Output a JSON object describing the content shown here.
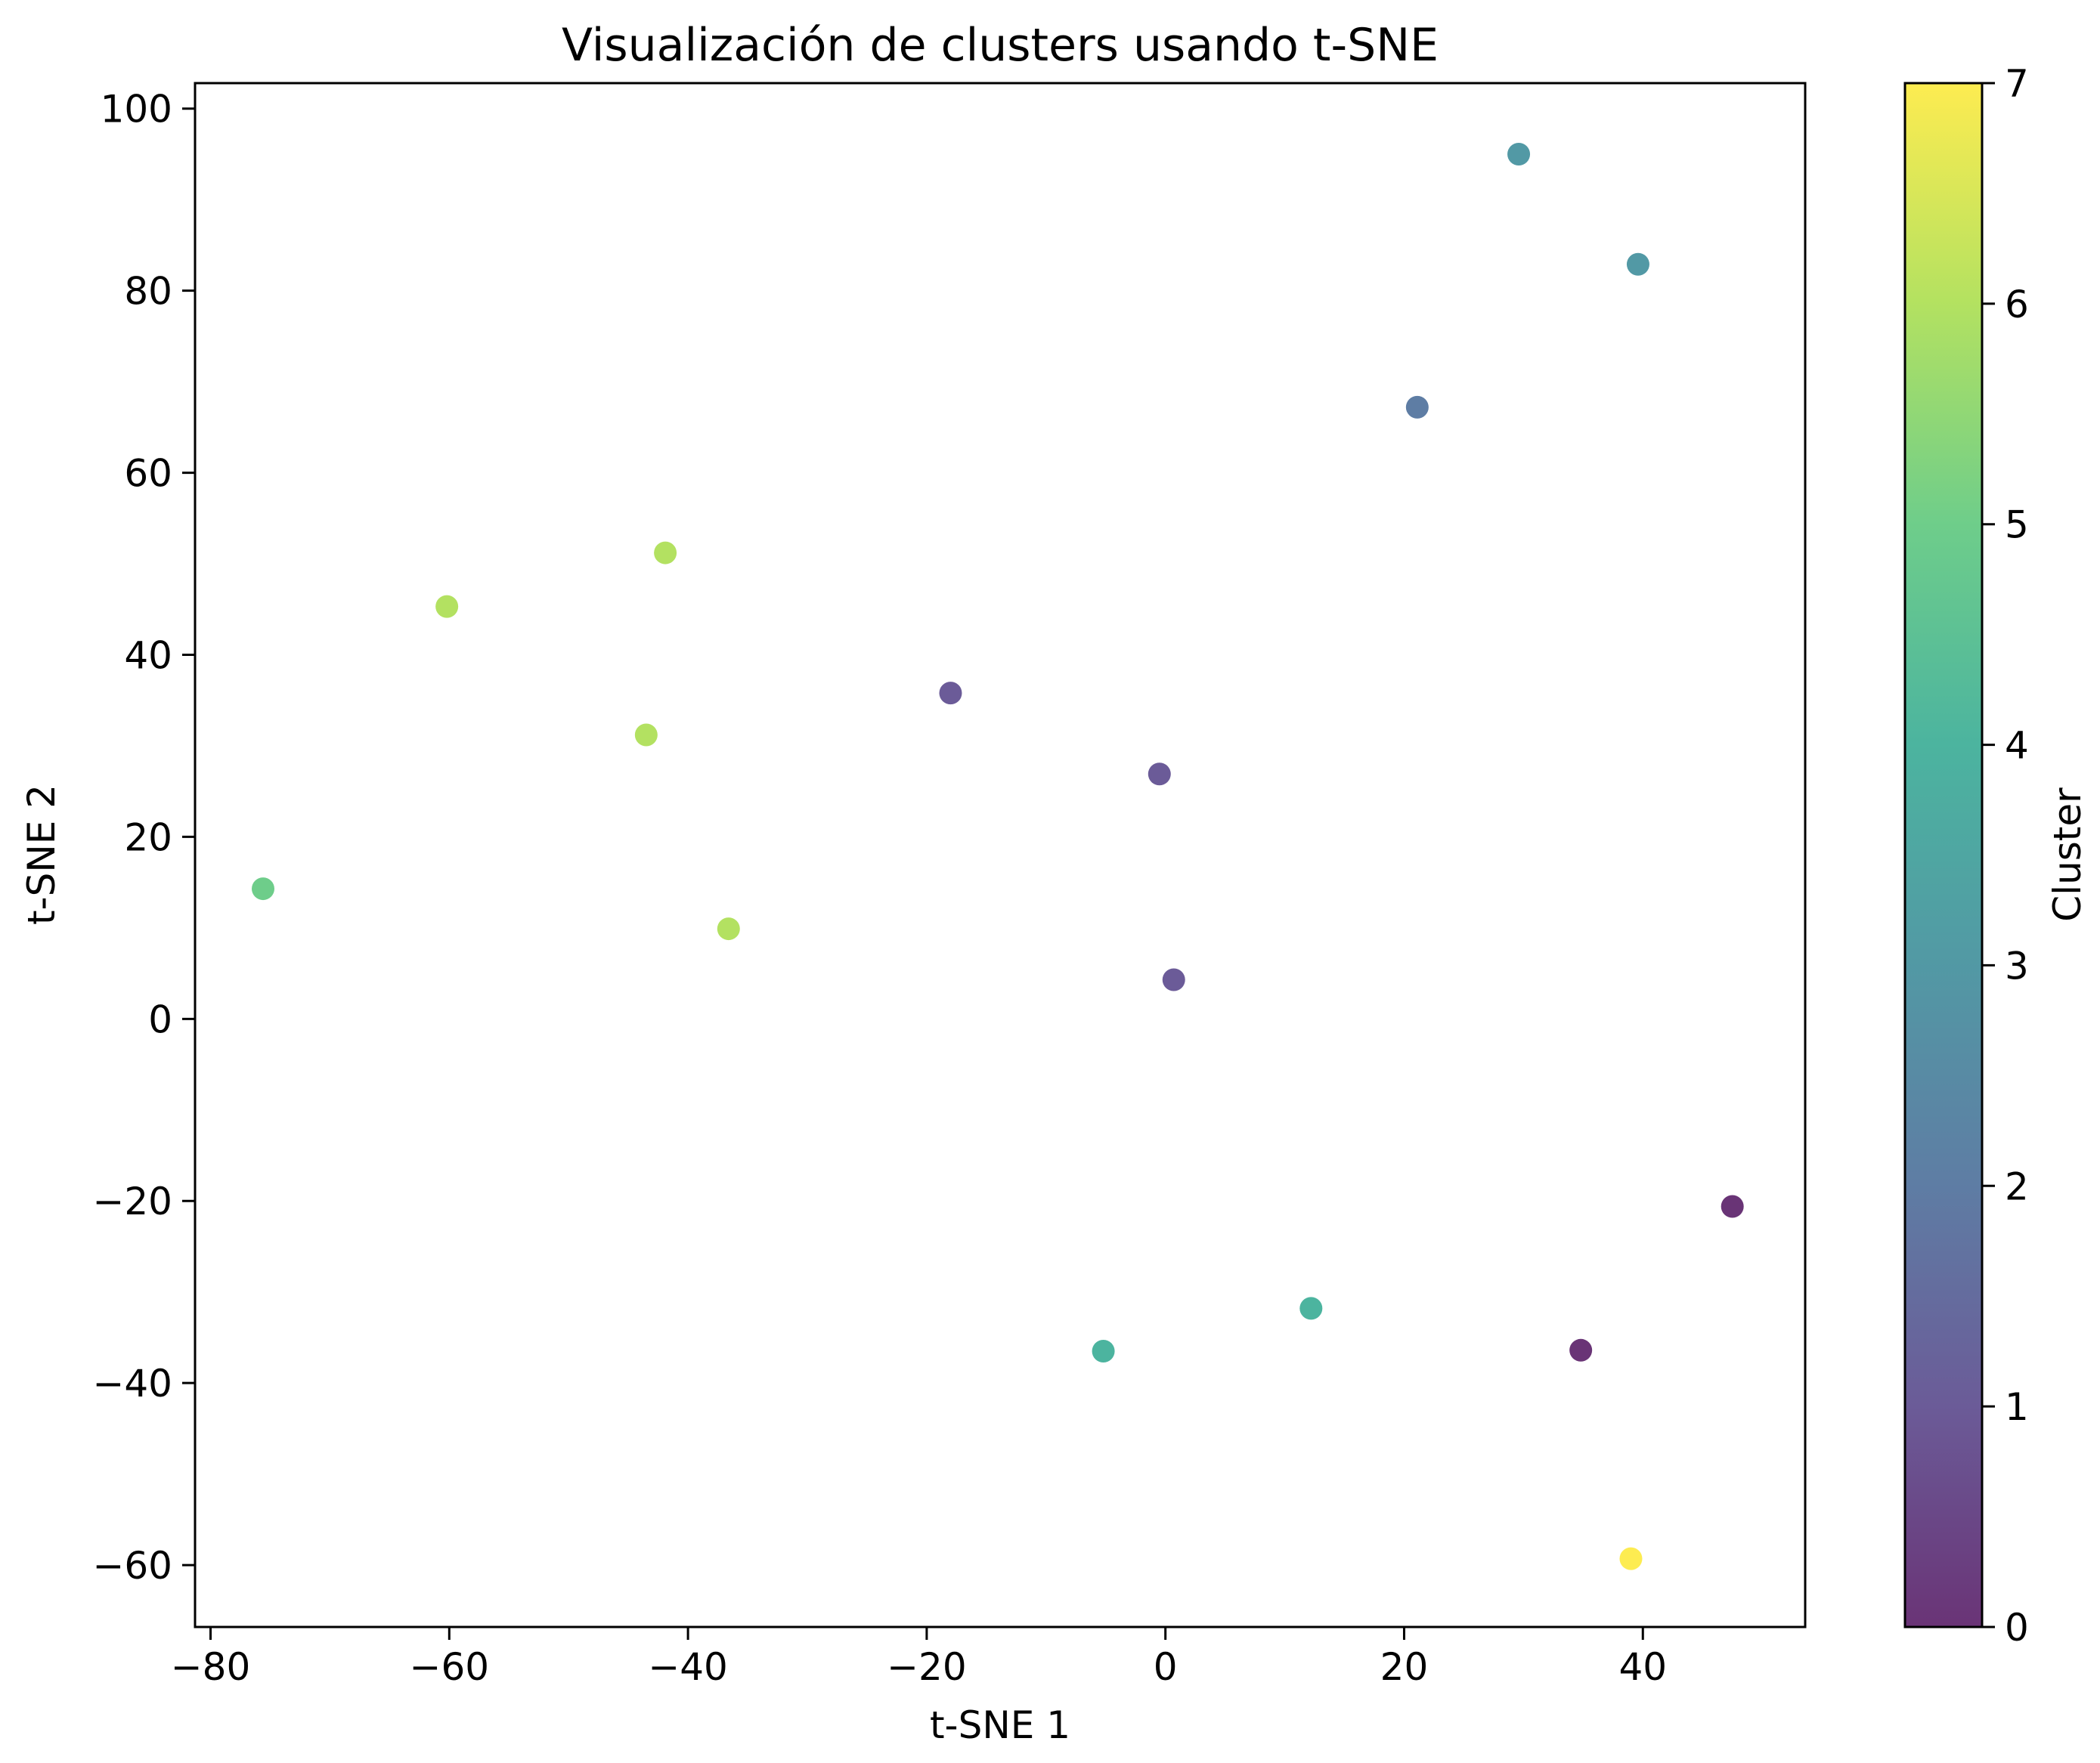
{
  "chart_data": {
    "type": "scatter",
    "title": "Visualización de clusters usando t-SNE",
    "xlabel": "t-SNE 1",
    "ylabel": "t-SNE 2",
    "xlim": [
      -81.3,
      53.6
    ],
    "ylim": [
      -66.8,
      102.8
    ],
    "xticks": [
      -80,
      -60,
      -40,
      -20,
      0,
      20,
      40
    ],
    "xtick_labels": [
      "−80",
      "−60",
      "−40",
      "−20",
      "0",
      "20",
      "40"
    ],
    "yticks": [
      -60,
      -40,
      -20,
      0,
      20,
      40,
      60,
      80,
      100
    ],
    "ytick_labels": [
      "−60",
      "−40",
      "−20",
      "0",
      "20",
      "40",
      "60",
      "80",
      "100"
    ],
    "grid": false,
    "colormap": "viridis",
    "colorbar": {
      "label": "Cluster",
      "range": [
        0,
        7
      ],
      "ticks": [
        0,
        1,
        2,
        3,
        4,
        5,
        6,
        7
      ],
      "tick_labels": [
        "0",
        "1",
        "2",
        "3",
        "4",
        "5",
        "6",
        "7"
      ],
      "stops": [
        "#440154",
        "#46327e",
        "#365c8d",
        "#277f8e",
        "#1fa187",
        "#4ac16d",
        "#a0da39",
        "#fde725"
      ]
    },
    "points": [
      {
        "x": 29.6,
        "y": 95.0,
        "cluster": 3
      },
      {
        "x": 39.6,
        "y": 82.9,
        "cluster": 3
      },
      {
        "x": 21.1,
        "y": 67.2,
        "cluster": 2
      },
      {
        "x": -41.9,
        "y": 51.2,
        "cluster": 6
      },
      {
        "x": -60.2,
        "y": 45.3,
        "cluster": 6
      },
      {
        "x": -18.0,
        "y": 35.8,
        "cluster": 1
      },
      {
        "x": -43.5,
        "y": 31.2,
        "cluster": 6
      },
      {
        "x": -0.5,
        "y": 26.9,
        "cluster": 1
      },
      {
        "x": -75.6,
        "y": 14.3,
        "cluster": 5
      },
      {
        "x": -36.6,
        "y": 9.9,
        "cluster": 6
      },
      {
        "x": 0.7,
        "y": 4.3,
        "cluster": 1
      },
      {
        "x": 47.5,
        "y": -20.6,
        "cluster": 0
      },
      {
        "x": 12.2,
        "y": -31.8,
        "cluster": 4
      },
      {
        "x": -5.2,
        "y": -36.5,
        "cluster": 4
      },
      {
        "x": 34.8,
        "y": -36.4,
        "cluster": 0
      },
      {
        "x": 39.0,
        "y": -59.3,
        "cluster": 7
      }
    ]
  }
}
